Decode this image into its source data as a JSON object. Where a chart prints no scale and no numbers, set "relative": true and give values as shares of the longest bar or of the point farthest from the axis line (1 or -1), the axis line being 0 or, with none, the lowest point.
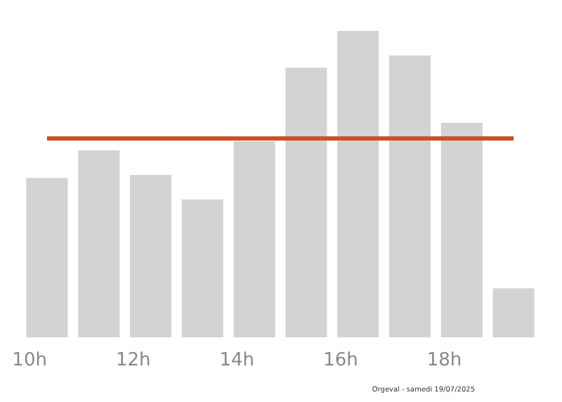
{
  "chart_data": {
    "type": "bar",
    "relative": true,
    "categories": [
      "10h",
      null,
      "12h",
      null,
      "14h",
      null,
      "16h",
      null,
      "18h",
      null
    ],
    "values": [
      0.52,
      0.61,
      0.53,
      0.45,
      0.64,
      0.88,
      1,
      0.92,
      0.7,
      0.16
    ],
    "color": "#d3d3d3",
    "ref_lines": [
      {
        "axis": "y",
        "value": 0.65,
        "color": "#c8502a"
      }
    ],
    "annotations": [
      "Orgeval - samedi 19/07/2025"
    ],
    "grid": false
  }
}
